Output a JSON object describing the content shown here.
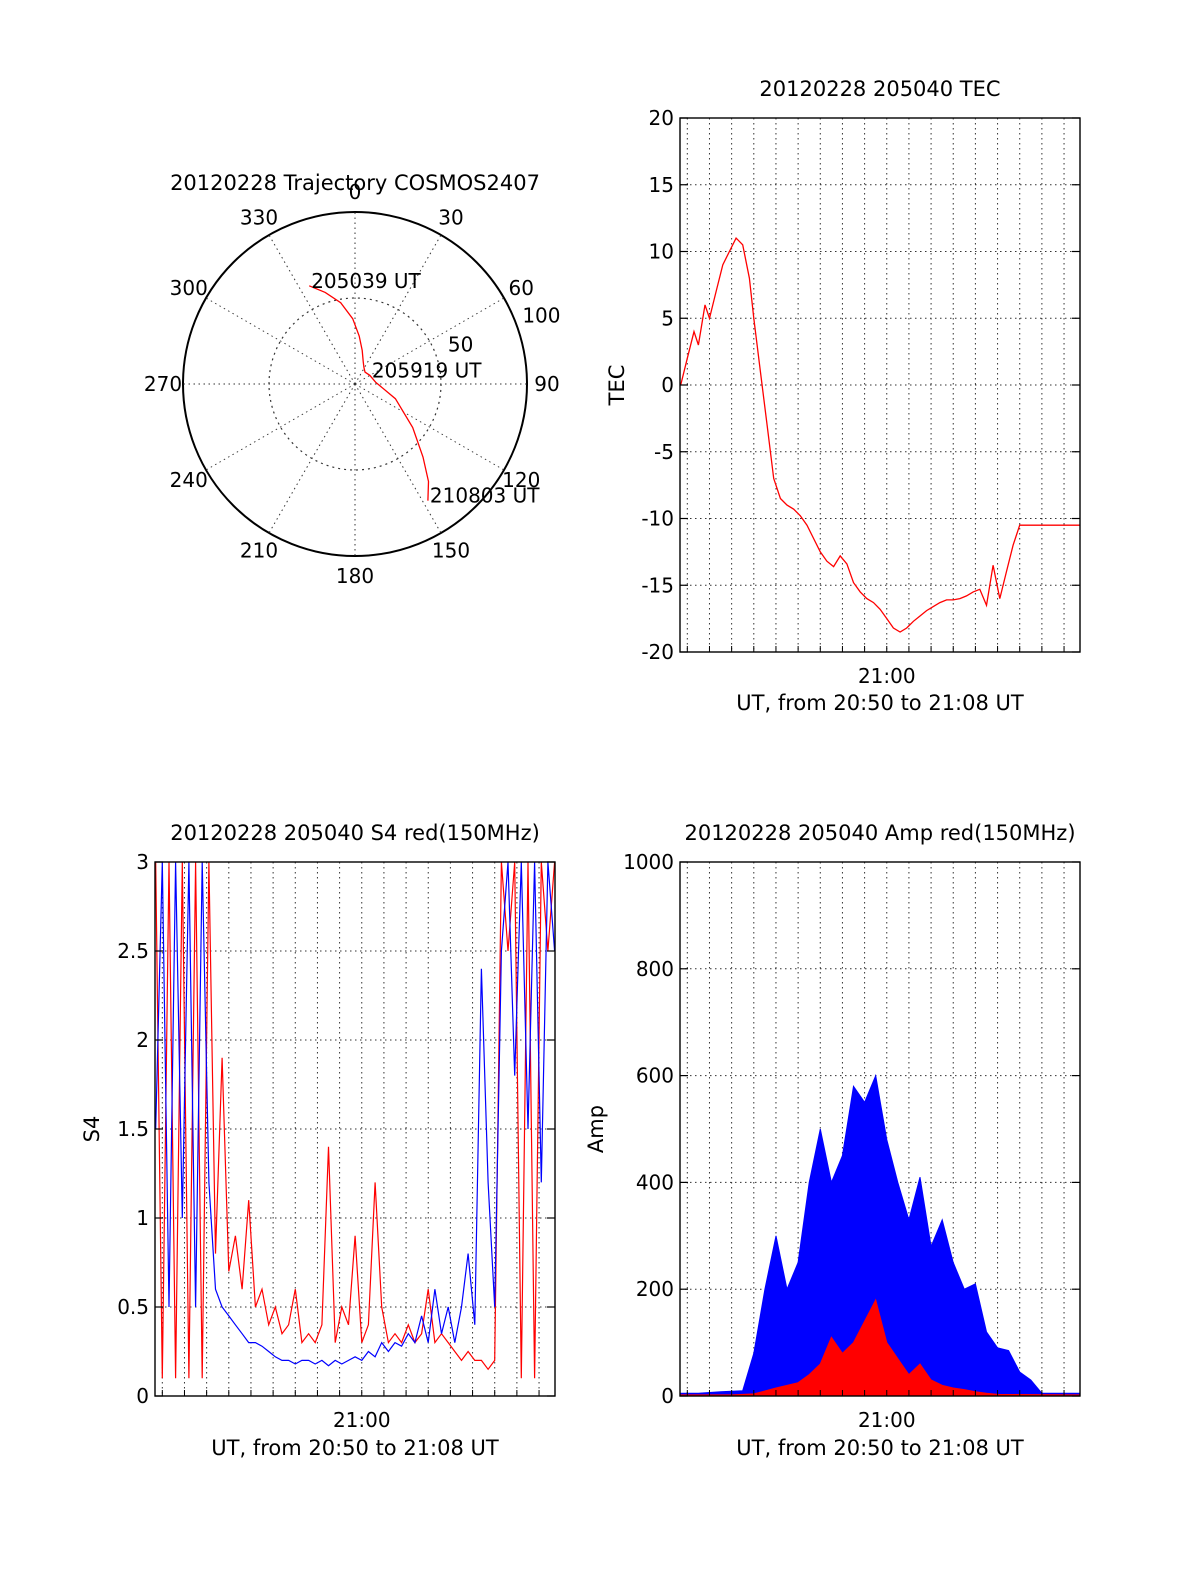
{
  "colors": {
    "series_red": "#ff0000",
    "series_blue": "#0000ff",
    "axis": "#000000",
    "grid": "#333333"
  },
  "chart_data": [
    {
      "id": "trajectory",
      "type": "polar",
      "title": "20120228 Trajectory COSMOS2407",
      "azimuth_labels": [
        "0",
        "30",
        "60",
        "90",
        "120",
        "150",
        "180",
        "210",
        "240",
        "270",
        "300",
        "330"
      ],
      "radial_ring_labels": [
        "50",
        "100"
      ],
      "grid": true,
      "series": [
        {
          "color": "red",
          "points": [
            [
              335,
              63
            ],
            [
              342,
              56
            ],
            [
              350,
              48
            ],
            [
              358,
              38
            ],
            [
              5,
              28
            ],
            [
              12,
              20
            ],
            [
              20,
              14
            ],
            [
              28,
              11
            ],
            [
              40,
              9
            ],
            [
              60,
              10
            ],
            [
              85,
              12
            ],
            [
              110,
              25
            ],
            [
              127,
              42
            ],
            [
              137,
              58
            ],
            [
              143,
              71
            ],
            [
              148,
              80
            ]
          ]
        }
      ],
      "annotations": [
        {
          "text": "205039 UT",
          "az": 335,
          "r": 63
        },
        {
          "text": "205919 UT",
          "az": 60,
          "r": 10
        },
        {
          "text": "210803 UT",
          "az": 148,
          "r": 80
        }
      ]
    },
    {
      "id": "tec",
      "type": "line",
      "title": "20120228 205040 TEC",
      "xlabel": "UT, from 20:50 to 21:08 UT",
      "ylabel": "TEC",
      "xlim": [
        0.67,
        18.72
      ],
      "ylim": [
        -20,
        20
      ],
      "yticks": [
        -20,
        -15,
        -10,
        -5,
        0,
        5,
        10,
        15,
        20
      ],
      "xtick_labels": [
        {
          "value": 10,
          "label": "21:00"
        }
      ],
      "grid": true,
      "series": [
        {
          "color": "red",
          "x": [
            0.7,
            1.0,
            1.3,
            1.5,
            1.8,
            2.0,
            2.3,
            2.6,
            2.9,
            3.2,
            3.5,
            3.8,
            4.0,
            4.3,
            4.6,
            4.9,
            5.2,
            5.5,
            5.8,
            6.1,
            6.4,
            6.7,
            7.0,
            7.3,
            7.6,
            7.9,
            8.2,
            8.5,
            8.8,
            9.1,
            9.4,
            9.7,
            10.0,
            10.3,
            10.6,
            10.9,
            11.2,
            11.5,
            11.8,
            12.1,
            12.4,
            12.7,
            13.0,
            13.3,
            13.6,
            13.9,
            14.2,
            14.5,
            14.8,
            15.1,
            15.4,
            15.7,
            16.0,
            16.3,
            16.6,
            16.9,
            17.2,
            17.5,
            17.8,
            18.1,
            18.4,
            18.7
          ],
          "y": [
            0,
            2,
            4,
            3,
            6,
            5,
            7,
            9,
            10,
            11,
            10.5,
            8,
            5,
            1,
            -3,
            -7,
            -8.5,
            -9,
            -9.3,
            -9.8,
            -10.5,
            -11.5,
            -12.5,
            -13.2,
            -13.6,
            -12.8,
            -13.4,
            -14.8,
            -15.5,
            -16,
            -16.3,
            -16.8,
            -17.5,
            -18.2,
            -18.5,
            -18.2,
            -17.7,
            -17.3,
            -16.9,
            -16.6,
            -16.3,
            -16.1,
            -16.1,
            -16,
            -15.8,
            -15.5,
            -15.3,
            -16.5,
            -13.5,
            -16,
            -14,
            -12,
            -10.5,
            -10.5,
            -10.5,
            -10.5,
            -10.5,
            -10.5,
            -10.5,
            -10.5,
            -10.5,
            -10.5
          ]
        }
      ]
    },
    {
      "id": "s4",
      "type": "line",
      "title": "20120228 205040 S4 red(150MHz)",
      "xlabel": "UT, from 20:50 to 21:08 UT",
      "ylabel": "S4",
      "xlim": [
        0.67,
        18.72
      ],
      "ylim": [
        0,
        3
      ],
      "yticks": [
        0,
        0.5,
        1,
        1.5,
        2,
        2.5,
        3
      ],
      "ytick_labels": [
        "0",
        "0.5",
        "1",
        "1.5",
        "2",
        "2.5",
        "3"
      ],
      "xtick_labels": [
        {
          "value": 10,
          "label": "21:00"
        }
      ],
      "grid": true,
      "series": [
        {
          "color": "red",
          "x": [
            0.7,
            1.0,
            1.3,
            1.6,
            1.9,
            2.2,
            2.5,
            2.8,
            3.1,
            3.4,
            3.7,
            4.0,
            4.3,
            4.6,
            4.9,
            5.2,
            5.5,
            5.8,
            6.1,
            6.4,
            6.7,
            7.0,
            7.3,
            7.6,
            7.9,
            8.2,
            8.5,
            8.8,
            9.1,
            9.4,
            9.7,
            10.0,
            10.3,
            10.6,
            10.9,
            11.2,
            11.5,
            11.8,
            12.1,
            12.4,
            12.7,
            13.0,
            13.3,
            13.6,
            13.9,
            14.2,
            14.5,
            14.8,
            15.1,
            15.4,
            15.7,
            16.0,
            16.3,
            16.6,
            16.9,
            17.2,
            17.5,
            17.8,
            18.1,
            18.4,
            18.7
          ],
          "y": [
            3,
            0.1,
            3,
            0.1,
            3,
            0.1,
            3,
            0.1,
            3,
            0.8,
            1.9,
            0.7,
            0.9,
            0.6,
            1.1,
            0.5,
            0.6,
            0.4,
            0.5,
            0.35,
            0.4,
            0.6,
            0.3,
            0.35,
            0.3,
            0.4,
            1.4,
            0.3,
            0.5,
            0.4,
            0.9,
            0.3,
            0.4,
            1.2,
            0.5,
            0.3,
            0.35,
            0.3,
            0.4,
            0.3,
            0.35,
            0.6,
            0.3,
            0.35,
            0.3,
            0.25,
            0.2,
            0.25,
            0.2,
            0.2,
            0.15,
            0.2,
            3,
            2.5,
            3,
            0.1,
            3,
            0.1,
            3,
            2.5,
            3
          ]
        },
        {
          "color": "blue",
          "x": [
            0.7,
            1.0,
            1.3,
            1.6,
            1.9,
            2.2,
            2.5,
            2.8,
            3.1,
            3.4,
            3.7,
            4.0,
            4.3,
            4.6,
            4.9,
            5.2,
            5.5,
            5.8,
            6.1,
            6.4,
            6.7,
            7.0,
            7.3,
            7.6,
            7.9,
            8.2,
            8.5,
            8.8,
            9.1,
            9.4,
            9.7,
            10.0,
            10.3,
            10.6,
            10.9,
            11.2,
            11.5,
            11.8,
            12.1,
            12.4,
            12.7,
            13.0,
            13.3,
            13.6,
            13.9,
            14.2,
            14.5,
            14.8,
            15.1,
            15.4,
            15.7,
            16.0,
            16.3,
            16.6,
            16.9,
            17.2,
            17.5,
            17.8,
            18.1,
            18.4,
            18.7
          ],
          "y": [
            1.5,
            3,
            0.5,
            3,
            1,
            3,
            0.5,
            3,
            1.2,
            0.6,
            0.5,
            0.45,
            0.4,
            0.35,
            0.3,
            0.3,
            0.28,
            0.25,
            0.22,
            0.2,
            0.2,
            0.18,
            0.2,
            0.2,
            0.18,
            0.2,
            0.17,
            0.2,
            0.18,
            0.2,
            0.22,
            0.2,
            0.25,
            0.22,
            0.3,
            0.25,
            0.3,
            0.28,
            0.35,
            0.3,
            0.45,
            0.3,
            0.6,
            0.35,
            0.5,
            0.3,
            0.5,
            0.8,
            0.4,
            2.4,
            1.2,
            0.5,
            2.5,
            3,
            1.8,
            3,
            1.5,
            3,
            1.2,
            3,
            2.5
          ]
        }
      ]
    },
    {
      "id": "amp",
      "type": "area",
      "title": "20120228 205040 Amp red(150MHz)",
      "xlabel": "UT, from 20:50 to 21:08 UT",
      "ylabel": "Amp",
      "xlim": [
        0.67,
        18.72
      ],
      "ylim": [
        0,
        1000
      ],
      "yticks": [
        0,
        200,
        400,
        600,
        800,
        1000
      ],
      "xtick_labels": [
        {
          "value": 10,
          "label": "21:00"
        }
      ],
      "grid": true,
      "series": [
        {
          "color": "blue",
          "x": [
            0.7,
            1.5,
            2.5,
            3.5,
            4.0,
            4.5,
            5.0,
            5.5,
            6.0,
            6.5,
            7.0,
            7.5,
            8.0,
            8.5,
            9.0,
            9.5,
            10.0,
            10.5,
            11.0,
            11.5,
            12.0,
            12.5,
            13.0,
            13.5,
            14.0,
            14.5,
            15.0,
            15.5,
            16.0,
            16.5,
            17.0,
            18.0,
            18.7
          ],
          "y": [
            5,
            5,
            8,
            10,
            80,
            200,
            300,
            200,
            250,
            400,
            500,
            400,
            450,
            580,
            550,
            600,
            480,
            400,
            330,
            410,
            280,
            330,
            250,
            200,
            210,
            120,
            90,
            85,
            45,
            30,
            5,
            5,
            5
          ]
        },
        {
          "color": "red",
          "x": [
            0.7,
            3.0,
            4.0,
            5.0,
            6.0,
            6.5,
            7.0,
            7.5,
            8.0,
            8.5,
            9.0,
            9.5,
            10.0,
            10.5,
            11.0,
            11.5,
            12.0,
            12.5,
            13.0,
            13.5,
            14.0,
            14.5,
            15.0,
            18.7
          ],
          "y": [
            2,
            2,
            4,
            15,
            25,
            40,
            60,
            110,
            80,
            100,
            140,
            180,
            100,
            70,
            40,
            60,
            30,
            20,
            15,
            12,
            8,
            5,
            3,
            2
          ]
        }
      ]
    }
  ]
}
